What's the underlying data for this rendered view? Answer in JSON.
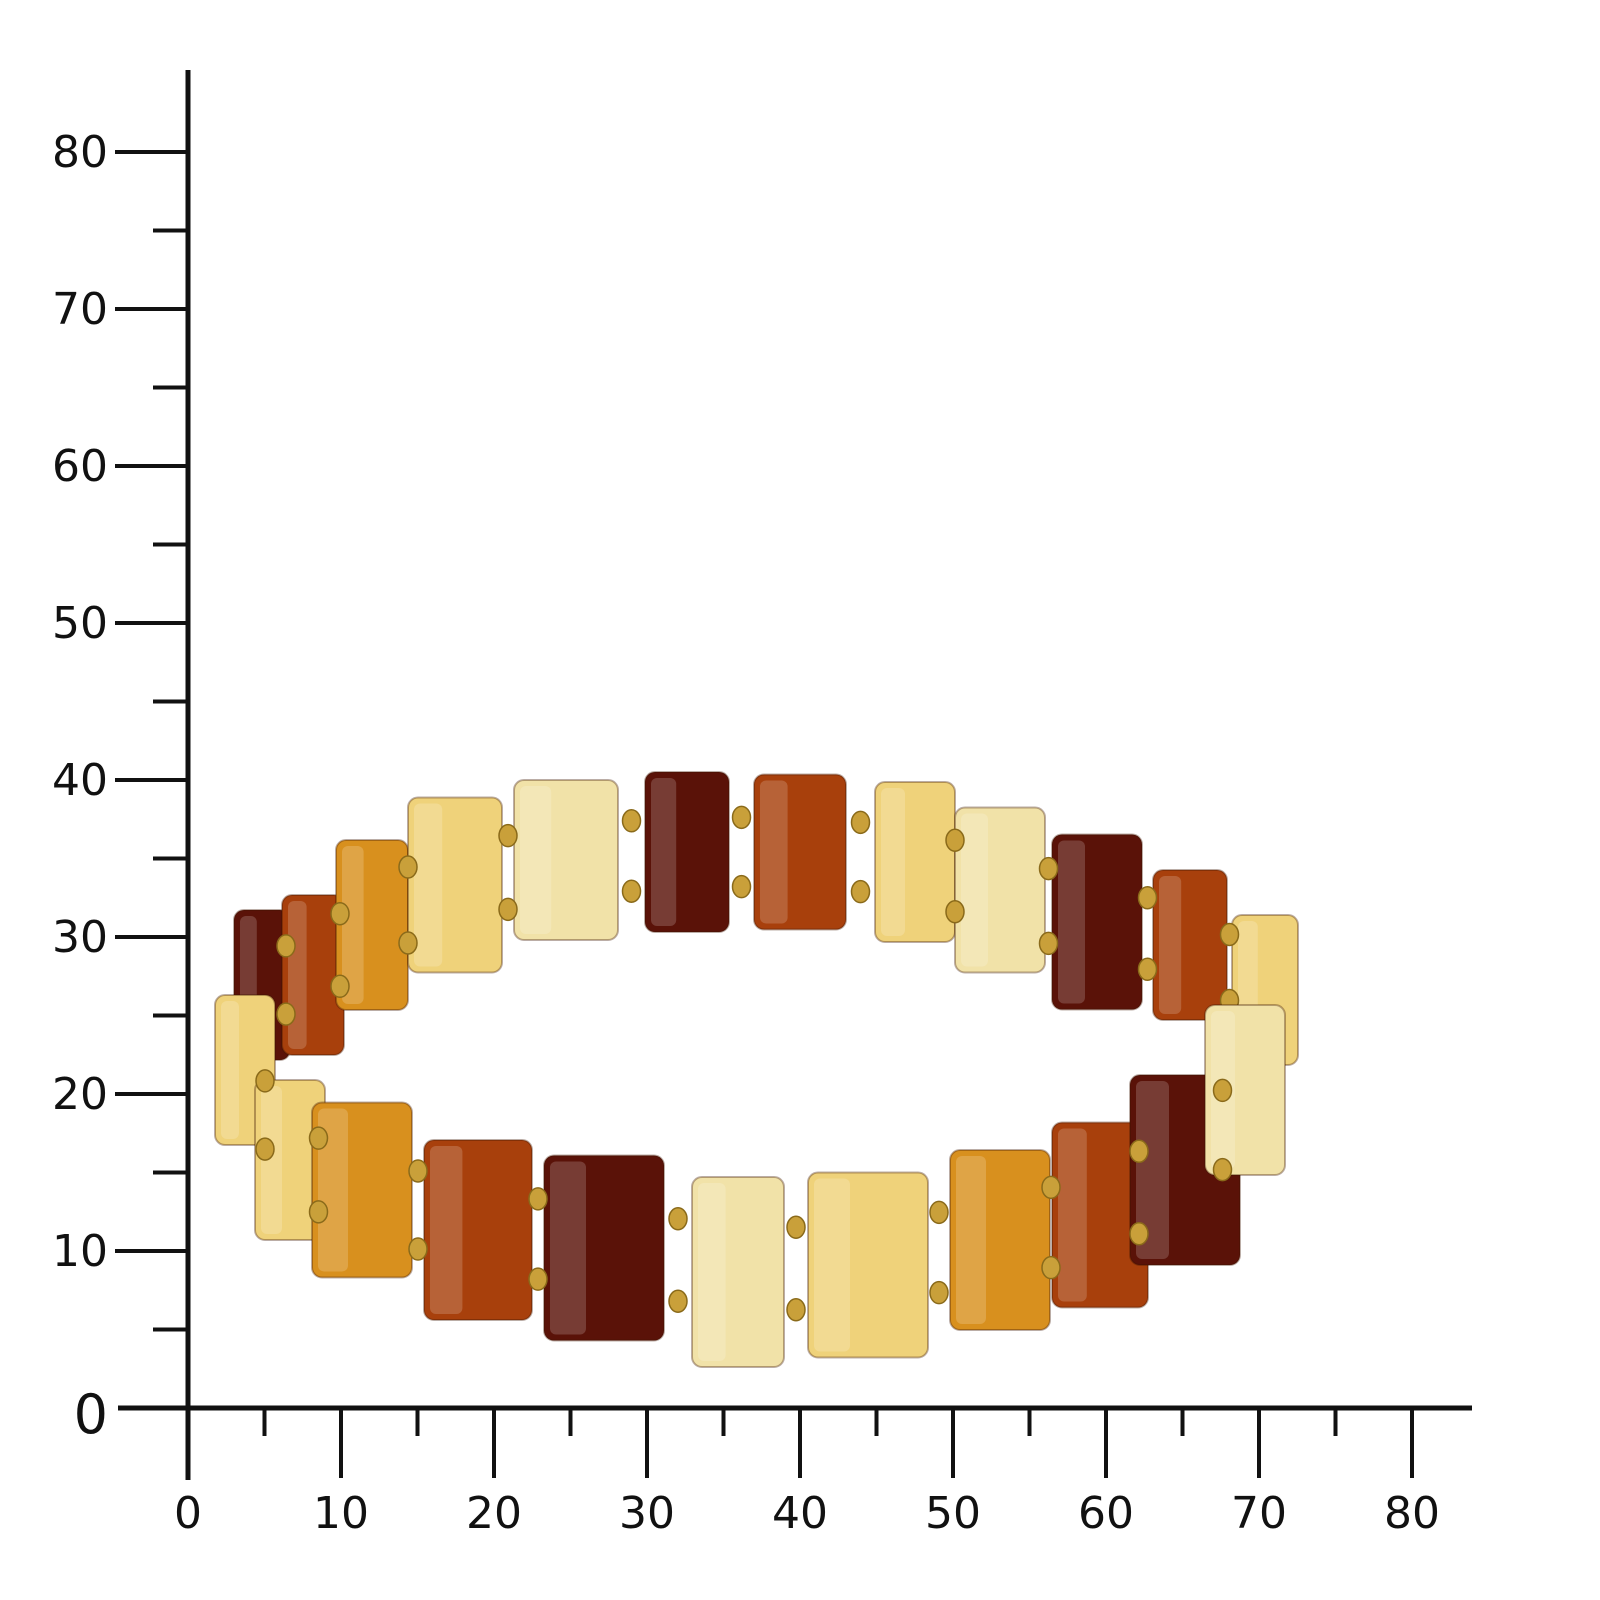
{
  "scale": {
    "y_tick_labels": [
      "0",
      "10",
      "20",
      "30",
      "40",
      "50",
      "60",
      "70",
      "80"
    ],
    "x_tick_labels": [
      "0",
      "10",
      "20",
      "30",
      "40",
      "50",
      "60",
      "70",
      "80"
    ],
    "axis_color": "#111111"
  },
  "product": {
    "bead_colors": {
      "cherry": "#5a1208",
      "cognac": "#a8400c",
      "honey": "#d8901e",
      "lemon": "#efd27a",
      "milky": "#f1e2a8",
      "spacer_gold": "#c9a03a"
    }
  }
}
